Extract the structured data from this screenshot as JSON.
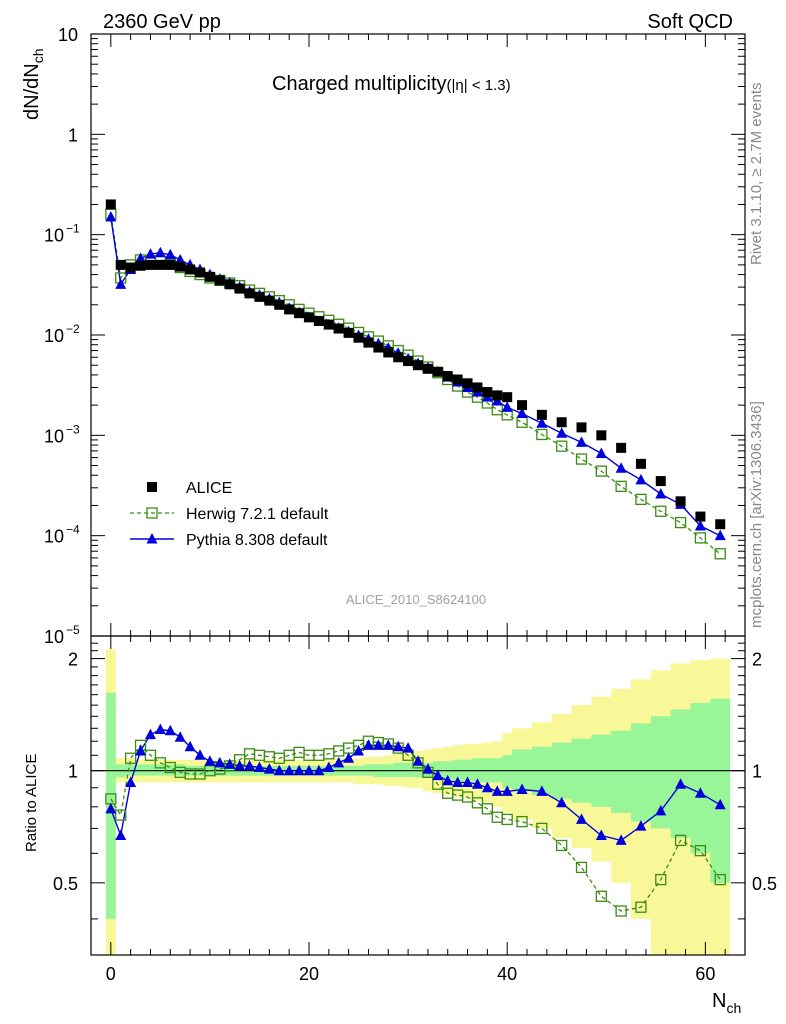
{
  "header": {
    "left": "2360 GeV pp",
    "right": "Soft QCD"
  },
  "side": {
    "rivet": "Rivet 3.1.10, ≥ 2.7M events",
    "mcplots": "mcplots.cern.ch [arXiv:1306.3436]"
  },
  "chart_data": {
    "type": "scatter",
    "title": "Charged multiplicity",
    "title_suffix": "(|η| < 1.3)",
    "analysis": "ALICE_2010_S8624100",
    "xlabel": "N",
    "xlabel_sub": "ch",
    "ylabel": "dN/dN",
    "ylabel_sub": "ch",
    "ratio_ylabel": "Ratio to ALICE",
    "xlim": [
      -2,
      64
    ],
    "ylim": [
      1e-05,
      10
    ],
    "yscale": "log",
    "ratio_ylim": [
      0.32,
      2.3
    ],
    "ratio_yscale": "log",
    "x_ticks": [
      0,
      20,
      40,
      60
    ],
    "y_ticks": [
      {
        "v": 10,
        "label": "10"
      },
      {
        "v": 1,
        "label": "1"
      },
      {
        "v": 0.1,
        "label": "10",
        "exp": "−1"
      },
      {
        "v": 0.01,
        "label": "10",
        "exp": "−2"
      },
      {
        "v": 0.001,
        "label": "10",
        "exp": "−3"
      },
      {
        "v": 0.0001,
        "label": "10",
        "exp": "−4"
      },
      {
        "v": 1e-05,
        "label": "10",
        "exp": "−5"
      }
    ],
    "ratio_ticks": [
      {
        "v": 0.5,
        "label": "0.5"
      },
      {
        "v": 1,
        "label": "1"
      },
      {
        "v": 2,
        "label": "2"
      }
    ],
    "legend": [
      {
        "label": "ALICE",
        "style": "data"
      },
      {
        "label": "Herwig 7.2.1 default",
        "style": "herwig"
      },
      {
        "label": "Pythia 8.308 default",
        "style": "pythia"
      }
    ],
    "legend_position": "bottom-left",
    "colors": {
      "data": "#000000",
      "herwig": "#3c8c14",
      "pythia": "#0000dd",
      "band_inner": "#98f598",
      "band_outer": "#f8f898"
    },
    "series": [
      {
        "name": "ALICE",
        "x": [
          0,
          1,
          2,
          3,
          4,
          5,
          6,
          7,
          8,
          9,
          10,
          11,
          12,
          13,
          14,
          15,
          16,
          17,
          18,
          19,
          20,
          21,
          22,
          23,
          24,
          25,
          26,
          27,
          28,
          29,
          30,
          31,
          32,
          33,
          34,
          35,
          36,
          37,
          38,
          39,
          40,
          41.5,
          43.5,
          45.5,
          47.5,
          49.5,
          51.5,
          53.5,
          55.5,
          57.5,
          59.5,
          61.5
        ],
        "y": [
          0.2,
          0.05,
          0.047,
          0.049,
          0.05,
          0.05,
          0.05,
          0.048,
          0.045,
          0.042,
          0.038,
          0.035,
          0.032,
          0.029,
          0.026,
          0.024,
          0.022,
          0.02,
          0.018,
          0.0165,
          0.015,
          0.0138,
          0.0127,
          0.0116,
          0.0105,
          0.0094,
          0.0084,
          0.0075,
          0.0067,
          0.006,
          0.0055,
          0.005,
          0.0046,
          0.0043,
          0.0039,
          0.0036,
          0.0033,
          0.003,
          0.0027,
          0.0025,
          0.0024,
          0.002,
          0.0016,
          0.00135,
          0.0012,
          0.001,
          0.00075,
          0.00052,
          0.00035,
          0.00022,
          0.000155,
          0.00013
        ]
      },
      {
        "name": "Herwig 7.2.1 default",
        "x": [
          0,
          1,
          2,
          3,
          4,
          5,
          6,
          7,
          8,
          9,
          10,
          11,
          12,
          13,
          14,
          15,
          16,
          17,
          18,
          19,
          20,
          21,
          22,
          23,
          24,
          25,
          26,
          27,
          28,
          29,
          30,
          31,
          32,
          33,
          34,
          35,
          36,
          37,
          38,
          39,
          40,
          41.5,
          43.5,
          45.5,
          47.5,
          49.5,
          51.5,
          53.5,
          55.5,
          57.5,
          59.5,
          61.5
        ],
        "y": [
          0.16,
          0.037,
          0.05,
          0.056,
          0.055,
          0.054,
          0.051,
          0.047,
          0.043,
          0.04,
          0.037,
          0.035,
          0.033,
          0.031,
          0.028,
          0.026,
          0.024,
          0.022,
          0.02,
          0.018,
          0.0165,
          0.0152,
          0.014,
          0.0128,
          0.0117,
          0.0106,
          0.0096,
          0.0087,
          0.0078,
          0.007,
          0.0063,
          0.0055,
          0.0048,
          0.0042,
          0.0036,
          0.0031,
          0.0027,
          0.0024,
          0.0021,
          0.0018,
          0.0016,
          0.00135,
          0.00102,
          0.00078,
          0.00058,
          0.00044,
          0.00031,
          0.00023,
          0.000175,
          0.000135,
          9.5e-05,
          6.6e-05
        ],
        "ratio": [
          0.84,
          0.76,
          1.08,
          1.17,
          1.1,
          1.05,
          1.02,
          0.99,
          0.98,
          0.98,
          1,
          1.01,
          1.03,
          1.07,
          1.11,
          1.1,
          1.09,
          1.08,
          1.1,
          1.12,
          1.1,
          1.1,
          1.11,
          1.13,
          1.15,
          1.17,
          1.2,
          1.19,
          1.18,
          1.15,
          1.1,
          1.05,
          0.99,
          0.92,
          0.87,
          0.86,
          0.85,
          0.82,
          0.79,
          0.75,
          0.74,
          0.73,
          0.7,
          0.63,
          0.55,
          0.46,
          0.42,
          0.43,
          0.51,
          0.65,
          0.61,
          0.51
        ]
      },
      {
        "name": "Pythia 8.308 default",
        "x": [
          0,
          1,
          2,
          3,
          4,
          5,
          6,
          7,
          8,
          9,
          10,
          11,
          12,
          13,
          14,
          15,
          16,
          17,
          18,
          19,
          20,
          21,
          22,
          23,
          24,
          25,
          26,
          27,
          28,
          29,
          30,
          31,
          32,
          33,
          34,
          35,
          36,
          37,
          38,
          39,
          40,
          41.5,
          43.5,
          45.5,
          47.5,
          49.5,
          51.5,
          53.5,
          55.5,
          57.5,
          59.5,
          61.5
        ],
        "y": [
          0.15,
          0.032,
          0.045,
          0.058,
          0.064,
          0.066,
          0.063,
          0.056,
          0.05,
          0.045,
          0.04,
          0.036,
          0.033,
          0.03,
          0.027,
          0.025,
          0.023,
          0.021,
          0.0185,
          0.0168,
          0.015,
          0.0137,
          0.0126,
          0.0117,
          0.0108,
          0.0099,
          0.0091,
          0.0082,
          0.0074,
          0.0066,
          0.0058,
          0.0052,
          0.0047,
          0.0043,
          0.0038,
          0.0034,
          0.003,
          0.0027,
          0.0024,
          0.0022,
          0.0019,
          0.00165,
          0.00132,
          0.00105,
          0.00085,
          0.00066,
          0.00047,
          0.00036,
          0.00026,
          0.000205,
          0.000125,
          0.0001
        ],
        "ratio": [
          0.79,
          0.67,
          0.93,
          1.13,
          1.25,
          1.29,
          1.28,
          1.23,
          1.16,
          1.1,
          1.06,
          1.05,
          1.04,
          1.03,
          1.03,
          1.02,
          1.01,
          1,
          1,
          1,
          1,
          1,
          1.02,
          1.05,
          1.08,
          1.13,
          1.17,
          1.17,
          1.17,
          1.16,
          1.15,
          1.06,
          1.01,
          0.97,
          0.94,
          0.93,
          0.93,
          0.92,
          0.9,
          0.88,
          0.88,
          0.89,
          0.88,
          0.82,
          0.74,
          0.67,
          0.65,
          0.71,
          0.78,
          0.92,
          0.87,
          0.81
        ]
      }
    ],
    "band_x": [
      -0.5,
      0.5,
      1.5,
      2.5,
      3.5,
      4.5,
      5.5,
      6.5,
      7.5,
      8.5,
      9.5,
      10.5,
      11.5,
      12.5,
      13.5,
      14.5,
      15.5,
      16.5,
      17.5,
      18.5,
      19.5,
      20.5,
      21.5,
      22.5,
      23.5,
      24.5,
      25.5,
      26.5,
      27.5,
      28.5,
      29.5,
      30.5,
      31.5,
      32.5,
      33.5,
      34.5,
      35.5,
      36.5,
      37.5,
      38.5,
      39.5,
      40.5,
      42.5,
      44.5,
      46.5,
      48.5,
      50.5,
      52.5,
      54.5,
      56.5,
      58.5,
      60.5,
      62.5
    ],
    "band_inner": [
      [
        0.4,
        1.62
      ],
      [
        0.96,
        1.04
      ],
      [
        0.97,
        1.04
      ],
      [
        0.97,
        1.04
      ],
      [
        0.97,
        1.04
      ],
      [
        0.97,
        1.04
      ],
      [
        0.97,
        1.04
      ],
      [
        0.97,
        1.04
      ],
      [
        0.97,
        1.03
      ],
      [
        0.97,
        1.03
      ],
      [
        0.97,
        1.03
      ],
      [
        0.97,
        1.03
      ],
      [
        0.97,
        1.03
      ],
      [
        0.97,
        1.03
      ],
      [
        0.97,
        1.03
      ],
      [
        0.97,
        1.03
      ],
      [
        0.97,
        1.03
      ],
      [
        0.97,
        1.03
      ],
      [
        0.97,
        1.03
      ],
      [
        0.97,
        1.03
      ],
      [
        0.97,
        1.03
      ],
      [
        0.97,
        1.03
      ],
      [
        0.97,
        1.03
      ],
      [
        0.97,
        1.03
      ],
      [
        0.97,
        1.03
      ],
      [
        0.97,
        1.03
      ],
      [
        0.97,
        1.04
      ],
      [
        0.96,
        1.04
      ],
      [
        0.96,
        1.04
      ],
      [
        0.96,
        1.05
      ],
      [
        0.96,
        1.05
      ],
      [
        0.96,
        1.05
      ],
      [
        0.96,
        1.05
      ],
      [
        0.95,
        1.06
      ],
      [
        0.95,
        1.06
      ],
      [
        0.94,
        1.07
      ],
      [
        0.94,
        1.07
      ],
      [
        0.93,
        1.08
      ],
      [
        0.93,
        1.08
      ],
      [
        0.93,
        1.08
      ],
      [
        0.9,
        1.1
      ],
      [
        0.88,
        1.14
      ],
      [
        0.86,
        1.16
      ],
      [
        0.84,
        1.19
      ],
      [
        0.82,
        1.22
      ],
      [
        0.8,
        1.25
      ],
      [
        0.77,
        1.28
      ],
      [
        0.73,
        1.34
      ],
      [
        0.7,
        1.4
      ],
      [
        0.66,
        1.46
      ],
      [
        0.6,
        1.52
      ],
      [
        0.5,
        1.56
      ]
    ],
    "band_outer": [
      [
        0.3,
        2.12
      ],
      [
        0.93,
        1.08
      ],
      [
        0.93,
        1.08
      ],
      [
        0.93,
        1.07
      ],
      [
        0.93,
        1.07
      ],
      [
        0.93,
        1.07
      ],
      [
        0.93,
        1.07
      ],
      [
        0.93,
        1.07
      ],
      [
        0.93,
        1.07
      ],
      [
        0.93,
        1.07
      ],
      [
        0.93,
        1.07
      ],
      [
        0.93,
        1.07
      ],
      [
        0.93,
        1.07
      ],
      [
        0.93,
        1.07
      ],
      [
        0.93,
        1.07
      ],
      [
        0.93,
        1.07
      ],
      [
        0.93,
        1.07
      ],
      [
        0.93,
        1.07
      ],
      [
        0.93,
        1.07
      ],
      [
        0.93,
        1.07
      ],
      [
        0.93,
        1.07
      ],
      [
        0.93,
        1.07
      ],
      [
        0.93,
        1.07
      ],
      [
        0.93,
        1.08
      ],
      [
        0.93,
        1.08
      ],
      [
        0.92,
        1.08
      ],
      [
        0.92,
        1.09
      ],
      [
        0.92,
        1.09
      ],
      [
        0.91,
        1.1
      ],
      [
        0.91,
        1.11
      ],
      [
        0.9,
        1.12
      ],
      [
        0.9,
        1.13
      ],
      [
        0.88,
        1.14
      ],
      [
        0.87,
        1.15
      ],
      [
        0.86,
        1.16
      ],
      [
        0.85,
        1.17
      ],
      [
        0.84,
        1.18
      ],
      [
        0.83,
        1.18
      ],
      [
        0.82,
        1.19
      ],
      [
        0.8,
        1.2
      ],
      [
        0.77,
        1.26
      ],
      [
        0.74,
        1.3
      ],
      [
        0.7,
        1.35
      ],
      [
        0.66,
        1.42
      ],
      [
        0.62,
        1.5
      ],
      [
        0.57,
        1.58
      ],
      [
        0.5,
        1.66
      ],
      [
        0.4,
        1.76
      ],
      [
        0.3,
        1.86
      ],
      [
        0.3,
        1.94
      ],
      [
        0.3,
        1.98
      ],
      [
        0.3,
        2
      ]
    ]
  }
}
